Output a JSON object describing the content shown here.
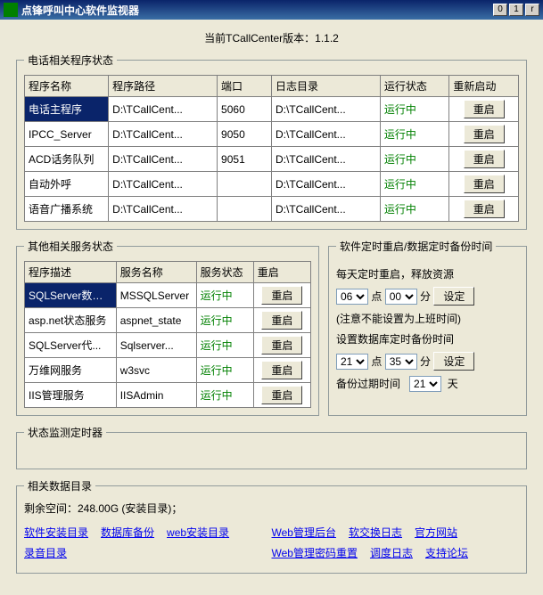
{
  "window": {
    "title": "点锋呼叫中心软件监视器"
  },
  "version_label": "当前TCallCenter版本：1.1.2",
  "phone_group": {
    "legend": "电话相关程序状态",
    "cols": [
      "程序名称",
      "程序路径",
      "端口",
      "日志目录",
      "运行状态",
      "重新启动"
    ],
    "widths": [
      "17%",
      "22%",
      "11%",
      "22%",
      "14%",
      "14%"
    ],
    "restart_label": "重启",
    "rows": [
      {
        "name": "电话主程序",
        "path": "D:\\TCallCent...",
        "port": "5060",
        "log": "D:\\TCallCent...",
        "status": "运行中",
        "sel": true
      },
      {
        "name": "IPCC_Server",
        "path": "D:\\TCallCent...",
        "port": "9050",
        "log": "D:\\TCallCent...",
        "status": "运行中"
      },
      {
        "name": "ACD话务队列",
        "path": "D:\\TCallCent...",
        "port": "9051",
        "log": "D:\\TCallCent...",
        "status": "运行中"
      },
      {
        "name": "自动外呼",
        "path": "D:\\TCallCent...",
        "port": "",
        "log": "D:\\TCallCent...",
        "status": "运行中"
      },
      {
        "name": "语音广播系统",
        "path": "D:\\TCallCent...",
        "port": "",
        "log": "D:\\TCallCent...",
        "status": "运行中"
      }
    ]
  },
  "svc_group": {
    "legend": "其他相关服务状态",
    "cols": [
      "程序描述",
      "服务名称",
      "服务状态",
      "重启"
    ],
    "widths": [
      "32%",
      "28%",
      "20%",
      "20%"
    ],
    "restart_label": "重启",
    "rows": [
      {
        "desc": "SQLServer数据库",
        "svc": "MSSQLServer",
        "status": "运行中",
        "sel": true
      },
      {
        "desc": "asp.net状态服务",
        "svc": "aspnet_state",
        "status": "运行中"
      },
      {
        "desc": "SQLServer代...",
        "svc": "Sqlserver...",
        "status": "运行中"
      },
      {
        "desc": "万维网服务",
        "svc": "w3svc",
        "status": "运行中"
      },
      {
        "desc": "IIS管理服务",
        "svc": "IISAdmin",
        "status": "运行中"
      }
    ]
  },
  "sched": {
    "legend": "软件定时重启/数据定时备份时间",
    "line1": "每天定时重启，释放资源",
    "hour1": "06",
    "min1": "00",
    "unit_h": "点",
    "unit_m": "分",
    "set": "设定",
    "note": "(注意不能设置为上班时间)",
    "line2": "设置数据库定时备份时间",
    "hour2": "21",
    "min2": "35",
    "expire_label": "备份过期时间",
    "expire": "21",
    "day_unit": "天"
  },
  "timer_legend": "状态监测定时器",
  "dirs": {
    "legend": "相关数据目录",
    "space": "剩余空间：248.00G (安装目录)；",
    "left": [
      "软件安装目录",
      "数据库备份",
      "web安装目录",
      "录音目录"
    ],
    "right": [
      "Web管理后台",
      "软交换日志",
      "官方网站",
      "Web管理密码重置",
      "调度日志",
      "支持论坛"
    ]
  }
}
